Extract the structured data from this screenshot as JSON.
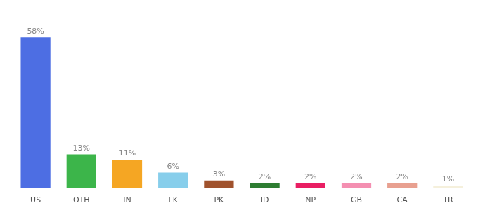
{
  "chart_data": {
    "type": "bar",
    "categories": [
      "US",
      "OTH",
      "IN",
      "LK",
      "PK",
      "ID",
      "NP",
      "GB",
      "CA",
      "TR"
    ],
    "values": [
      58,
      13,
      11,
      6,
      3,
      2,
      2,
      2,
      2,
      1
    ],
    "value_labels": [
      "58%",
      "13%",
      "11%",
      "6%",
      "3%",
      "2%",
      "2%",
      "2%",
      "2%",
      "1%"
    ],
    "colors": [
      "#4d6ee3",
      "#3cb54a",
      "#f5a623",
      "#87ceeb",
      "#a0522d",
      "#2e7d32",
      "#e91e63",
      "#f48fb1",
      "#e8a090",
      "#f5f0dc"
    ],
    "ylim": [
      0,
      68
    ],
    "data_labels": true,
    "tick_labels": "x",
    "grid": false
  }
}
